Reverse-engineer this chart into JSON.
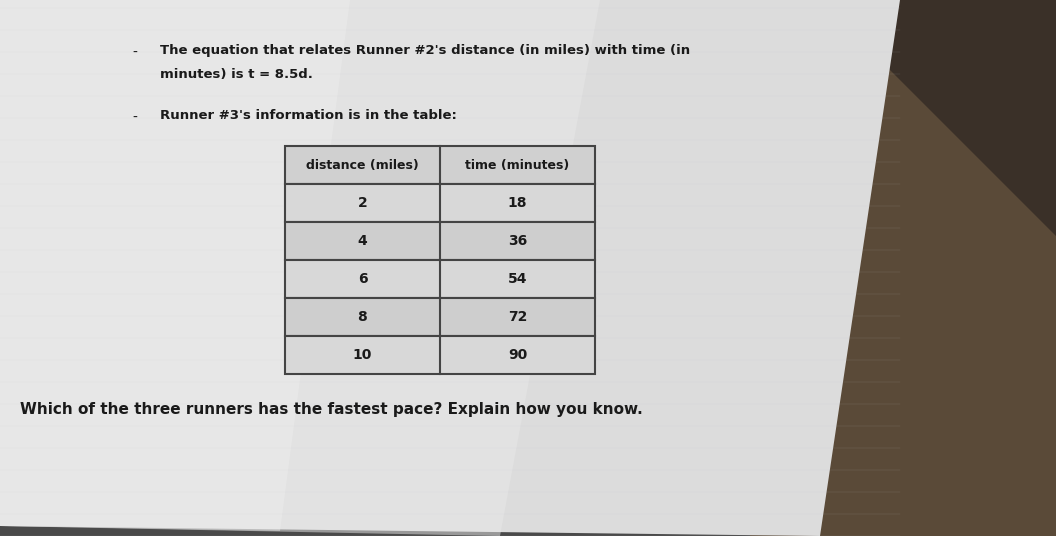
{
  "bullet1_line1": "The equation that relates Runner #2's distance (in miles) with time (in",
  "bullet1_line2": "minutes) is t = 8.5d.",
  "bullet2_line1": "Runner #3's information is in the table:",
  "table_headers": [
    "distance (miles)",
    "time (minutes)"
  ],
  "table_data": [
    [
      "2",
      "18"
    ],
    [
      "4",
      "36"
    ],
    [
      "6",
      "54"
    ],
    [
      "8",
      "72"
    ],
    [
      "10",
      "90"
    ]
  ],
  "question": "Which of the three runners has the fastest pace? Explain how you know.",
  "bg_dark": "#3a3a3a",
  "bg_desk_right": "#5a4a3a",
  "paper_color": "#e8e8e8",
  "paper_color_light": "#f0f0f0",
  "text_color": "#1a1a1a",
  "table_line_color": "#444444",
  "bullet_dash": "-"
}
